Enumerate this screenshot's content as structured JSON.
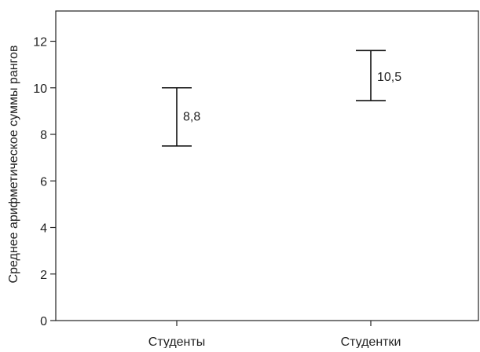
{
  "chart_data": {
    "type": "errorbar",
    "title": "",
    "xlabel": "",
    "ylabel": "Среднее арифметическое суммы рангов",
    "ylim": [
      0,
      13.3
    ],
    "yticks": [
      0,
      2,
      4,
      6,
      8,
      10,
      12
    ],
    "ytick_labels": [
      "0",
      "2",
      "4",
      "6",
      "8",
      "10",
      "12"
    ],
    "categories": [
      "Студенты",
      "Студентки"
    ],
    "series": [
      {
        "points": [
          {
            "category": "Студенты",
            "mean": 8.8,
            "low": 7.5,
            "high": 10.0,
            "label": "8,8"
          },
          {
            "category": "Студентки",
            "mean": 10.5,
            "low": 9.45,
            "high": 11.6,
            "label": "10,5"
          }
        ]
      }
    ],
    "grid": false,
    "legend": "none"
  }
}
